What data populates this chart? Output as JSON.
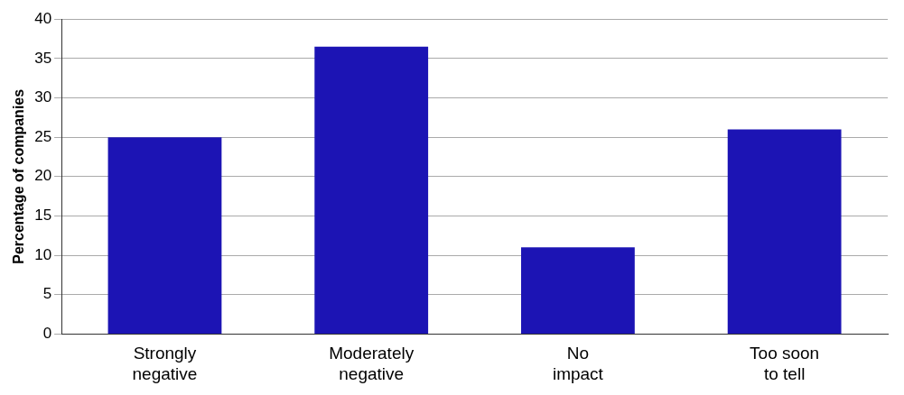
{
  "chart_data": {
    "type": "bar",
    "ylabel": "Percentage of companies",
    "categories": [
      "Strongly negative",
      "Moderately negative",
      "No impact",
      "Too soon to tell"
    ],
    "values": [
      25,
      36.5,
      11,
      26
    ],
    "color": "#1c14b4",
    "ylim": [
      0,
      40
    ],
    "yticks": [
      0,
      5,
      10,
      15,
      20,
      25,
      30,
      35,
      40
    ],
    "grid": "y"
  }
}
